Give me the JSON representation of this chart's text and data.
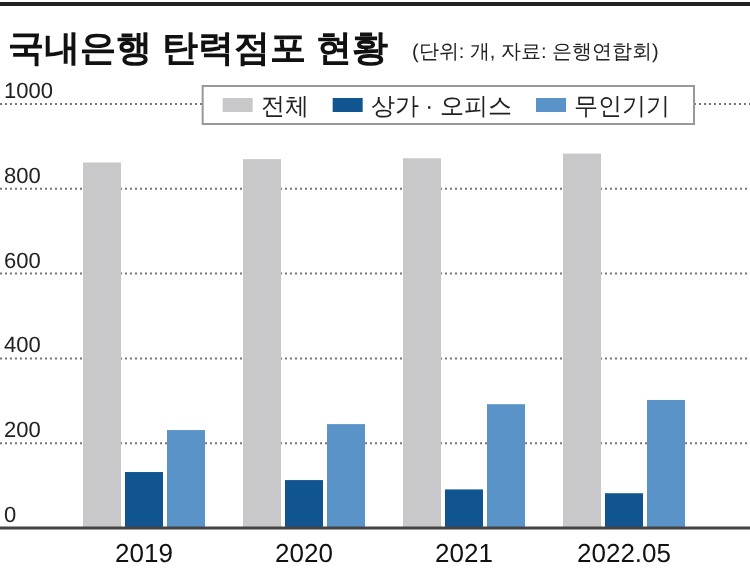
{
  "chart_data": {
    "type": "bar",
    "title": "국내은행 탄력점포 현황",
    "subtitle": "(단위: 개, 자료: 은행연합회)",
    "categories": [
      "2019",
      "2020",
      "2021",
      "2022.05"
    ],
    "series": [
      {
        "name": "전체",
        "color": "#c8c8ca",
        "values": [
          862,
          870,
          872,
          883
        ]
      },
      {
        "name": "상가 · 오피스",
        "color": "#105590",
        "values": [
          132,
          113,
          91,
          82
        ]
      },
      {
        "name": "무인기기",
        "color": "#5a93c8",
        "values": [
          231,
          245,
          292,
          302
        ]
      }
    ],
    "ylim": [
      0,
      1000
    ],
    "yticks": [
      0,
      200,
      400,
      600,
      800,
      1000
    ],
    "grid": "y",
    "legend": "top"
  }
}
